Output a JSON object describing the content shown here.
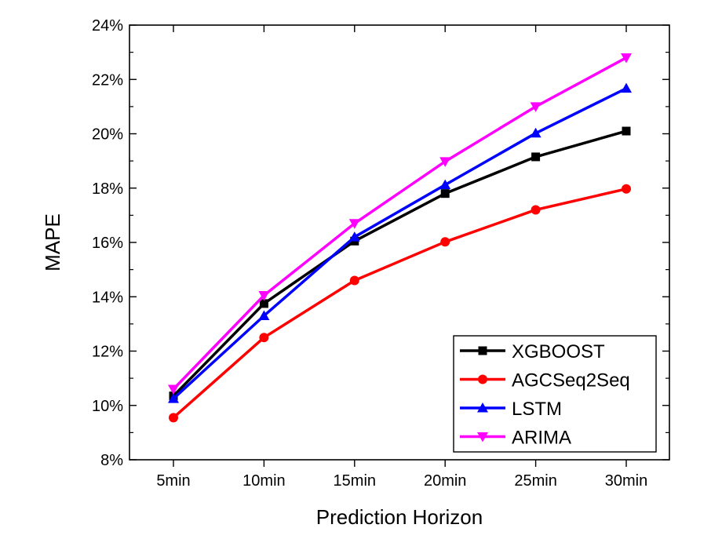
{
  "chart_data": {
    "type": "line",
    "xlabel": "Prediction Horizon",
    "ylabel": "MAPE",
    "categories": [
      "5min",
      "10min",
      "15min",
      "20min",
      "25min",
      "30min"
    ],
    "ylim": [
      8,
      24
    ],
    "yticks": [
      8,
      10,
      12,
      14,
      16,
      18,
      20,
      22,
      24
    ],
    "ytick_labels": [
      "8%",
      "10%",
      "12%",
      "14%",
      "16%",
      "18%",
      "20%",
      "22%",
      "24%"
    ],
    "grid": false,
    "legend_position": "bottom-right",
    "series": [
      {
        "name": "XGBOOST",
        "color": "#000000",
        "marker": "square",
        "values": [
          10.35,
          13.75,
          16.05,
          17.8,
          19.15,
          20.1
        ]
      },
      {
        "name": "AGCSeq2Seq",
        "color": "#ff0000",
        "marker": "circle",
        "values": [
          9.55,
          12.5,
          14.6,
          16.02,
          17.2,
          17.97
        ]
      },
      {
        "name": "LSTM",
        "color": "#0000ff",
        "marker": "triangle-up",
        "values": [
          10.25,
          13.3,
          16.2,
          18.12,
          20.02,
          21.67
        ]
      },
      {
        "name": "ARIMA",
        "color": "#ff00ff",
        "marker": "triangle-down",
        "values": [
          10.6,
          14.05,
          16.7,
          18.98,
          21.0,
          22.8
        ]
      }
    ]
  }
}
